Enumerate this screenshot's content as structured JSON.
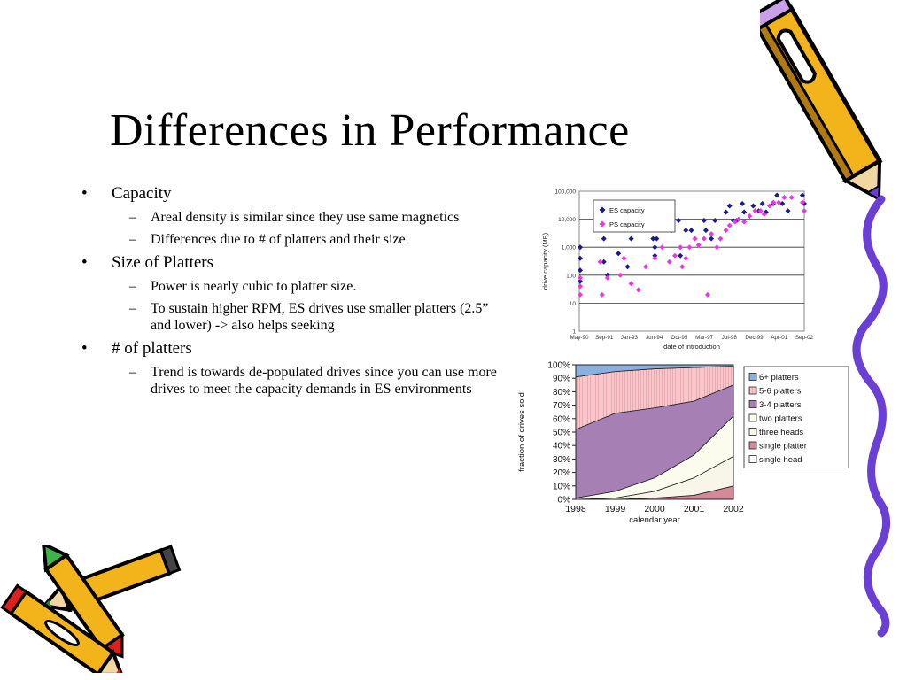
{
  "slide": {
    "title": "Differences in Performance",
    "bullets": [
      {
        "mark": "•",
        "text": "Capacity",
        "sub": [
          {
            "mark": "–",
            "text": "Areal density is similar since they use same magnetics"
          },
          {
            "mark": "–",
            "text": "Differences due to # of platters and their size"
          }
        ]
      },
      {
        "mark": "•",
        "text": "Size of Platters",
        "sub": [
          {
            "mark": "–",
            "text": "Power is nearly cubic to platter size."
          },
          {
            "mark": "–",
            "text": "To sustain higher RPM, ES drives use smaller platters (2.5” and lower) -> also helps seeking"
          }
        ]
      },
      {
        "mark": "•",
        "text": "# of platters",
        "sub": [
          {
            "mark": "–",
            "text": "Trend is towards de-populated drives since you can use more drives to meet the capacity demands in ES environments"
          }
        ]
      }
    ]
  },
  "decorations": [
    "pencil-icon",
    "crayon-icon",
    "squiggle-line"
  ],
  "chart_data": [
    {
      "type": "scatter",
      "ylabel": "drive capacity (MB)",
      "xlabel": "date of introduction",
      "y_scale": "log",
      "ylim": [
        1,
        100000
      ],
      "y_ticks": [
        "1",
        "10",
        "100",
        "1,000",
        "10,000",
        "100,000"
      ],
      "x_ticks": [
        "May-90",
        "Sep-91",
        "Jan-93",
        "Jun-94",
        "Oct-95",
        "Mar-97",
        "Jul-98",
        "Dec-99",
        "Apr-01",
        "Sep-02"
      ],
      "legend_position": "top-left",
      "grid": true,
      "series": [
        {
          "name": "ES capacity",
          "color": "#1a1a8c",
          "marker": "diamond",
          "points": [
            [
              1990.4,
              1000
            ],
            [
              1990.4,
              400
            ],
            [
              1990.4,
              150
            ],
            [
              1990.4,
              60
            ],
            [
              1991.7,
              2000
            ],
            [
              1991.7,
              300
            ],
            [
              1991.9,
              100
            ],
            [
              1992.5,
              600
            ],
            [
              1993.0,
              200
            ],
            [
              1993.2,
              2000
            ],
            [
              1994.4,
              2000
            ],
            [
              1994.5,
              1000
            ],
            [
              1994.5,
              500
            ],
            [
              1994.6,
              2000
            ],
            [
              1995.4,
              4000
            ],
            [
              1995.8,
              9000
            ],
            [
              1995.9,
              500
            ],
            [
              1996.2,
              4000
            ],
            [
              1996.5,
              4000
            ],
            [
              1997.2,
              9000
            ],
            [
              1997.3,
              4000
            ],
            [
              1997.6,
              2000
            ],
            [
              1997.8,
              9000
            ],
            [
              1998.4,
              18000
            ],
            [
              1998.6,
              30000
            ],
            [
              1998.8,
              9000
            ],
            [
              1999.0,
              9000
            ],
            [
              1999.3,
              36000
            ],
            [
              1999.4,
              18000
            ],
            [
              1999.9,
              30000
            ],
            [
              2000.2,
              20000
            ],
            [
              2000.4,
              36000
            ],
            [
              2000.6,
              18000
            ],
            [
              2001.0,
              36000
            ],
            [
              2001.2,
              72000
            ],
            [
              2001.5,
              36000
            ],
            [
              2001.8,
              20000
            ],
            [
              2002.6,
              72000
            ],
            [
              2002.7,
              36000
            ]
          ]
        },
        {
          "name": "PS capacity",
          "color": "#e838e0",
          "marker": "diamond",
          "points": [
            [
              1990.4,
              40
            ],
            [
              1990.4,
              80
            ],
            [
              1990.4,
              20
            ],
            [
              1991.5,
              300
            ],
            [
              1991.6,
              20
            ],
            [
              1991.9,
              80
            ],
            [
              1992.6,
              100
            ],
            [
              1992.8,
              400
            ],
            [
              1993.2,
              50
            ],
            [
              1993.6,
              30
            ],
            [
              1994.0,
              200
            ],
            [
              1994.5,
              400
            ],
            [
              1994.9,
              1000
            ],
            [
              1995.3,
              300
            ],
            [
              1995.6,
              500
            ],
            [
              1995.9,
              1000
            ],
            [
              1996.0,
              200
            ],
            [
              1996.2,
              400
            ],
            [
              1996.4,
              1000
            ],
            [
              1996.7,
              2000
            ],
            [
              1996.9,
              1200
            ],
            [
              1997.2,
              2000
            ],
            [
              1997.4,
              20
            ],
            [
              1997.6,
              3000
            ],
            [
              1997.9,
              1000
            ],
            [
              1998.1,
              2000
            ],
            [
              1998.4,
              4000
            ],
            [
              1998.6,
              6000
            ],
            [
              1998.9,
              8000
            ],
            [
              1999.1,
              10000
            ],
            [
              1999.4,
              8000
            ],
            [
              1999.7,
              13000
            ],
            [
              2000.0,
              20000
            ],
            [
              2000.3,
              20000
            ],
            [
              2000.5,
              15000
            ],
            [
              2000.8,
              30000
            ],
            [
              2001.0,
              40000
            ],
            [
              2001.3,
              40000
            ],
            [
              2001.6,
              60000
            ],
            [
              2002.0,
              60000
            ],
            [
              2002.6,
              40000
            ],
            [
              2002.7,
              20000
            ]
          ]
        }
      ]
    },
    {
      "type": "area",
      "stacked": "percent",
      "ylabel": "fraction of drives sold",
      "xlabel": "calendar year",
      "categories": [
        "1998",
        "1999",
        "2000",
        "2001",
        "2002"
      ],
      "ylim": [
        0,
        100
      ],
      "y_ticks": [
        "0%",
        "10%",
        "20%",
        "30%",
        "40%",
        "50%",
        "60%",
        "70%",
        "80%",
        "90%",
        "100%"
      ],
      "legend_position": "right",
      "series": [
        {
          "name": "single head",
          "color": "#ffffff",
          "values": [
            0,
            0,
            0,
            0,
            0
          ]
        },
        {
          "name": "single platter",
          "color": "#d58a9a",
          "values": [
            0,
            0,
            1,
            3,
            10
          ]
        },
        {
          "name": "three heads",
          "color": "#f8f6e8",
          "values": [
            0,
            1,
            5,
            13,
            22
          ]
        },
        {
          "name": "two platters",
          "color": "#fbfbee",
          "values": [
            1,
            5,
            10,
            17,
            30
          ]
        },
        {
          "name": "3-4 platters",
          "color": "#a67fb5",
          "values": [
            51,
            58,
            52,
            40,
            23
          ]
        },
        {
          "name": "5-6 platters",
          "color": "#f8c7cb",
          "values": [
            39,
            31,
            29,
            25,
            14
          ]
        },
        {
          "name": "6+ platters",
          "color": "#8bb0dd",
          "values": [
            9,
            5,
            3,
            2,
            1
          ]
        }
      ]
    }
  ]
}
